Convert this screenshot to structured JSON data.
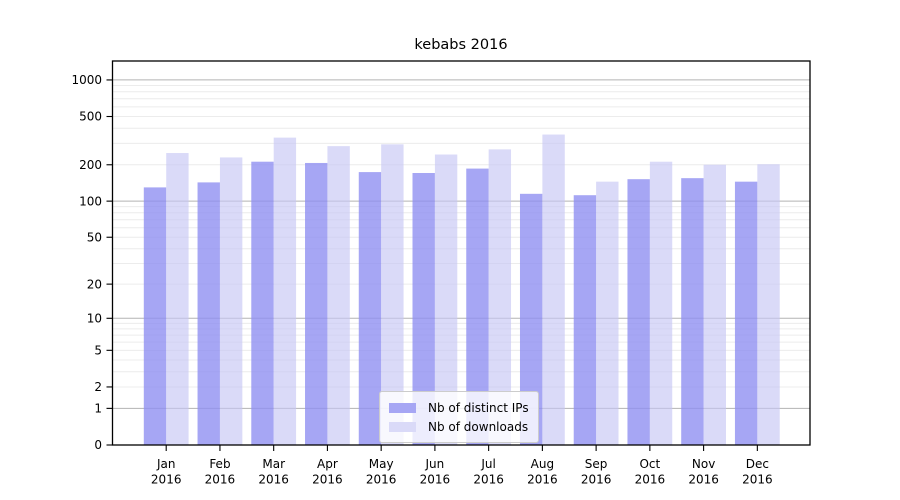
{
  "chart_data": {
    "type": "bar",
    "title": "kebabs 2016",
    "categories": [
      "Jan 2016",
      "Feb 2016",
      "Mar 2016",
      "Apr 2016",
      "May 2016",
      "Jun 2016",
      "Jul 2016",
      "Aug 2016",
      "Sep 2016",
      "Oct 2016",
      "Nov 2016",
      "Dec 2016"
    ],
    "series": [
      {
        "name": "Nb of distinct IPs",
        "values": [
          130,
          143,
          212,
          207,
          174,
          171,
          186,
          115,
          112,
          152,
          155,
          145
        ],
        "color": "#9090f1",
        "opacity": 0.8,
        "legend_swatch_color": "#a6a6f4"
      },
      {
        "name": "Nb of downloads",
        "values": [
          250,
          230,
          335,
          285,
          295,
          243,
          268,
          355,
          145,
          212,
          200,
          202
        ],
        "color": "#c6c6f5",
        "opacity": 0.65,
        "legend_swatch_color": "#dadaf8"
      }
    ],
    "xlabel": "",
    "ylabel": "",
    "y_scale": "log1p",
    "y_ticks": [
      0,
      1,
      2,
      5,
      10,
      20,
      50,
      100,
      200,
      500,
      1000
    ],
    "ylim": [
      0,
      1430
    ],
    "grid": {
      "horizontal": true,
      "major_values": [
        1,
        10,
        100,
        1000
      ],
      "major_color": "#b3b3b3",
      "minor_color": "#ececec"
    },
    "legend_position": "inside-bottom-center",
    "axis_color": "#000000",
    "background_color": "#ffffff"
  }
}
